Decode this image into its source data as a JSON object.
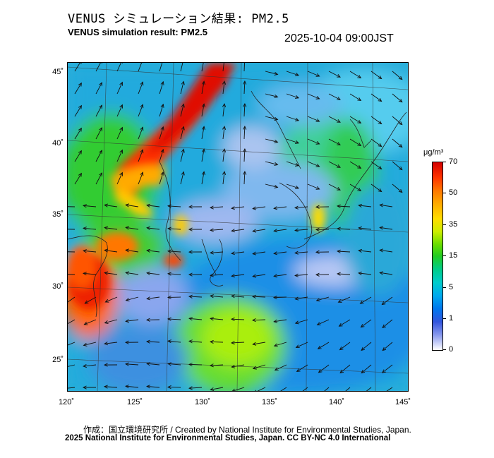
{
  "header": {
    "title_jp": "VENUS シミュレーション結果: PM2.5",
    "title_en": "VENUS simulation result: PM2.5",
    "timestamp": "2025-10-04 09:00JST"
  },
  "axes": {
    "lat_ticks": [
      "45˚",
      "40˚",
      "35˚",
      "30˚",
      "25˚"
    ],
    "lon_ticks": [
      "120˚",
      "125˚",
      "130˚",
      "135˚",
      "140˚",
      "145˚"
    ]
  },
  "colorbar": {
    "unit": "μg/m³",
    "levels": [
      "70",
      "50",
      "35",
      "15",
      "5",
      "1",
      "0"
    ],
    "colors": [
      "#d40000",
      "#ffaa00",
      "#66dd00",
      "#00cccc",
      "#0077ee",
      "#ffffff"
    ]
  },
  "footer": {
    "credit_line1": "作成：国立環境研究所 / Created by National Institute for Environmental Studies, Japan.",
    "credit_line2": "2025 National Institute for Environmental Studies, Japan. CC BY-NC 4.0 International"
  }
}
